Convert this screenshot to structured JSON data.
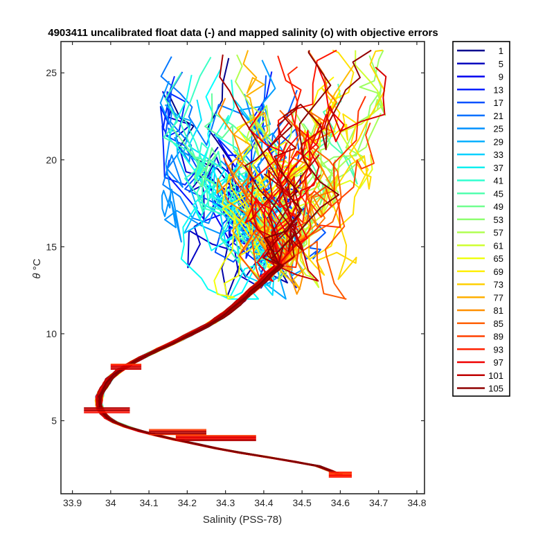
{
  "chart_data": {
    "type": "line",
    "title": "4903411 uncalibrated float data (-) and mapped salinity (o) with objective errors",
    "xlabel": "Salinity (PSS-78)",
    "ylabel_symbol": "θ",
    "ylabel_unit": "°C",
    "xlim": [
      33.87,
      34.82
    ],
    "ylim": [
      0.8,
      26.8
    ],
    "xticks": [
      33.9,
      34.0,
      34.1,
      34.2,
      34.3,
      34.4,
      34.5,
      34.6,
      34.7,
      34.8
    ],
    "xtick_labels": [
      "33.9",
      "34",
      "34.1",
      "34.2",
      "34.3",
      "34.4",
      "34.5",
      "34.6",
      "34.7",
      "34.8"
    ],
    "yticks": [
      5,
      10,
      15,
      20,
      25
    ],
    "ytick_labels": [
      "5",
      "10",
      "15",
      "20",
      "25"
    ],
    "grid": false,
    "legend_position": "outside-right",
    "colormap": "jet",
    "legend": [
      "1",
      "5",
      "9",
      "13",
      "17",
      "21",
      "25",
      "29",
      "33",
      "37",
      "41",
      "45",
      "49",
      "53",
      "57",
      "61",
      "65",
      "69",
      "73",
      "77",
      "81",
      "85",
      "89",
      "93",
      "97",
      "101",
      "105"
    ],
    "legend_colors": [
      "#00008F",
      "#0000BF",
      "#0000EF",
      "#0020FF",
      "#0050FF",
      "#0070FF",
      "#0090FF",
      "#00B0FF",
      "#00D0FF",
      "#10EFEF",
      "#30FFCF",
      "#50FFAF",
      "#70FF8F",
      "#8FFF70",
      "#AFFF50",
      "#CFFF30",
      "#EFFF10",
      "#FFEF00",
      "#FFCF00",
      "#FFAF00",
      "#FF8F00",
      "#FF6000",
      "#FF4000",
      "#FF2000",
      "#EF0000",
      "#BF0000",
      "#8F0000"
    ],
    "profile_count": 105,
    "deep_ts_curve": [
      {
        "s": 34.6,
        "t": 1.9
      },
      {
        "s": 34.54,
        "t": 2.4
      },
      {
        "s": 34.44,
        "t": 2.8
      },
      {
        "s": 34.3,
        "t": 3.3
      },
      {
        "s": 34.15,
        "t": 4.0
      },
      {
        "s": 34.06,
        "t": 4.5
      },
      {
        "s": 34.0,
        "t": 5.0
      },
      {
        "s": 33.975,
        "t": 5.5
      },
      {
        "s": 33.968,
        "t": 6.0
      },
      {
        "s": 33.972,
        "t": 6.5
      },
      {
        "s": 33.985,
        "t": 7.0
      },
      {
        "s": 34.0,
        "t": 7.5
      },
      {
        "s": 34.03,
        "t": 8.0
      },
      {
        "s": 34.07,
        "t": 8.5
      },
      {
        "s": 34.115,
        "t": 9.0
      },
      {
        "s": 34.165,
        "t": 9.5
      },
      {
        "s": 34.21,
        "t": 10.0
      },
      {
        "s": 34.255,
        "t": 10.5
      },
      {
        "s": 34.29,
        "t": 11.0
      },
      {
        "s": 34.32,
        "t": 11.5
      },
      {
        "s": 34.345,
        "t": 12.0
      },
      {
        "s": 34.37,
        "t": 12.5
      },
      {
        "s": 34.395,
        "t": 13.0
      },
      {
        "s": 34.42,
        "t": 13.5
      },
      {
        "s": 34.445,
        "t": 14.0
      },
      {
        "s": 34.47,
        "t": 14.5
      },
      {
        "s": 34.495,
        "t": 15.0
      }
    ],
    "error_bars": [
      {
        "t": 1.9,
        "s_min": 34.57,
        "s_max": 34.63
      },
      {
        "t": 4.0,
        "s_min": 34.17,
        "s_max": 34.38
      },
      {
        "t": 4.35,
        "s_min": 34.1,
        "s_max": 34.25
      },
      {
        "t": 5.6,
        "s_min": 33.93,
        "s_max": 34.05
      },
      {
        "t": 8.1,
        "s_min": 34.0,
        "s_max": 34.08
      }
    ]
  }
}
